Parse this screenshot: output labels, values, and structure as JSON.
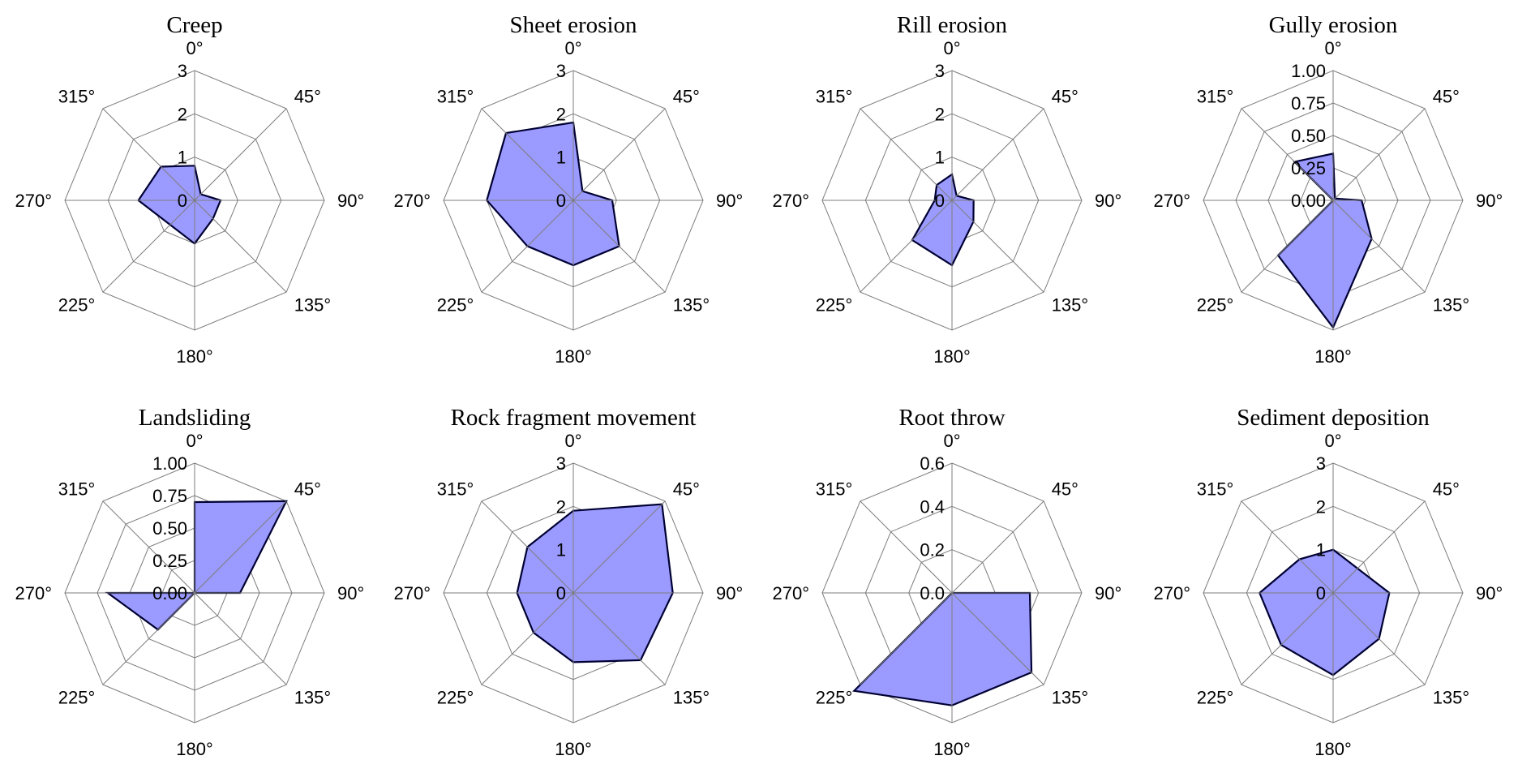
{
  "colors": {
    "fill": "#9b9bff",
    "outline": "#000033",
    "grid": "#7d7d7d"
  },
  "directions": [
    "0°",
    "45°",
    "90°",
    "135°",
    "180°",
    "225°",
    "270°",
    "315°"
  ],
  "chart_data": [
    {
      "type": "radar",
      "title": "Creep",
      "rmax": 3,
      "ticks": [
        "0",
        "1",
        "2",
        "3"
      ],
      "values": [
        0.8,
        0.2,
        0.6,
        0.6,
        1.0,
        0.8,
        1.3,
        1.1
      ]
    },
    {
      "type": "radar",
      "title": "Sheet erosion",
      "rmax": 3,
      "ticks": [
        "0",
        "1",
        "2",
        "3"
      ],
      "values": [
        1.8,
        0.3,
        0.9,
        1.5,
        1.5,
        1.5,
        2.0,
        2.2
      ]
    },
    {
      "type": "radar",
      "title": "Rill erosion",
      "rmax": 3,
      "ticks": [
        "0",
        "1",
        "2",
        "3"
      ],
      "values": [
        0.6,
        0.15,
        0.5,
        0.7,
        1.5,
        1.3,
        0.4,
        0.5
      ]
    },
    {
      "type": "radar",
      "title": "Gully erosion",
      "rmax": 1.0,
      "ticks": [
        "0.00",
        "0.25",
        "0.50",
        "0.75",
        "1.00"
      ],
      "values": [
        0.36,
        0.02,
        0.22,
        0.42,
        0.98,
        0.6,
        0.0,
        0.42
      ]
    },
    {
      "type": "radar",
      "title": "Landsliding",
      "rmax": 1.0,
      "ticks": [
        "0.00",
        "0.25",
        "0.50",
        "0.75",
        "1.00"
      ],
      "values": [
        0.7,
        1.0,
        0.35,
        0.0,
        0.0,
        0.4,
        0.67,
        0.0
      ]
    },
    {
      "type": "radar",
      "title": "Rock fragment movement",
      "rmax": 3,
      "ticks": [
        "0",
        "1",
        "2",
        "3"
      ],
      "values": [
        1.9,
        2.9,
        2.3,
        2.2,
        1.6,
        1.3,
        1.3,
        1.5
      ]
    },
    {
      "type": "radar",
      "title": "Root throw",
      "rmax": 0.6,
      "ticks": [
        "0.0",
        "0.2",
        "0.4",
        "0.6"
      ],
      "values": [
        0.0,
        0.0,
        0.36,
        0.52,
        0.52,
        0.64,
        0.0,
        0.0
      ]
    },
    {
      "type": "radar",
      "title": "Sediment deposition",
      "rmax": 3,
      "ticks": [
        "0",
        "1",
        "2",
        "3"
      ],
      "values": [
        1.0,
        0.8,
        1.3,
        1.5,
        1.9,
        1.7,
        1.7,
        1.1
      ]
    }
  ]
}
